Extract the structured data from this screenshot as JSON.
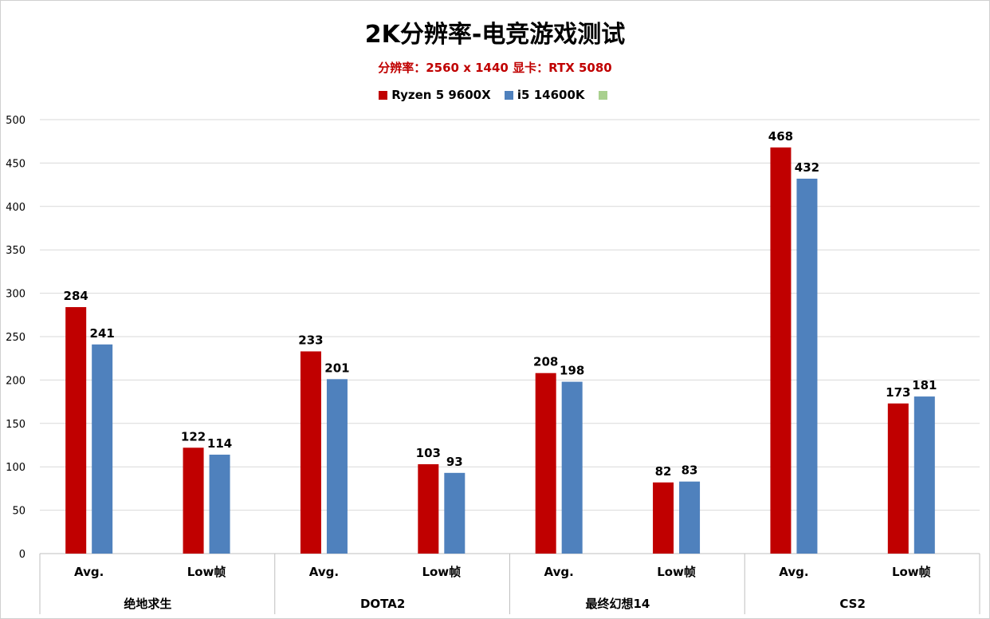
{
  "chart_data": {
    "type": "bar",
    "title": "2K分辨率-电竞游戏测试",
    "subtitle": "分辨率：2560 x 1440  显卡：RTX 5080",
    "ylim": [
      0,
      500
    ],
    "yticks": [
      0,
      50,
      100,
      150,
      200,
      250,
      300,
      350,
      400,
      450,
      500
    ],
    "grid": true,
    "legend_position": "top-center",
    "groups": [
      "绝地求生",
      "DOTA2",
      "最终幻想14",
      "CS2"
    ],
    "subcategories": [
      "Avg.",
      "Low帧"
    ],
    "series": [
      {
        "name": "Ryzen 5 9600X",
        "color": "#c00000",
        "values": [
          284,
          122,
          233,
          103,
          208,
          82,
          468,
          173
        ]
      },
      {
        "name": "i5 14600K",
        "color": "#4f81bd",
        "values": [
          241,
          114,
          201,
          93,
          198,
          83,
          432,
          181
        ]
      },
      {
        "name": "",
        "color": "#a9d08e",
        "values": []
      }
    ]
  }
}
